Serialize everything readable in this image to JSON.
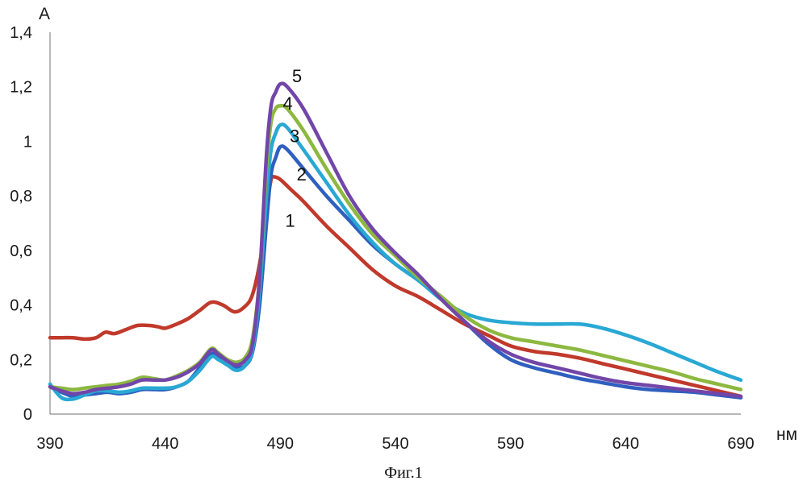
{
  "caption": "Фиг.1",
  "chart_data": {
    "type": "line",
    "title": "",
    "xlabel": "нм",
    "ylabel": "А",
    "xlim": [
      390,
      690
    ],
    "ylim": [
      0,
      1.4
    ],
    "x_ticks": [
      "390",
      "440",
      "490",
      "540",
      "590",
      "640",
      "690"
    ],
    "y_ticks": [
      "0",
      "0,2",
      "0,4",
      "0,6",
      "0,8",
      "1",
      "1,2",
      "1,4"
    ],
    "grid": false,
    "legend": "none",
    "series": [
      {
        "name": "1",
        "color": "#c0392b",
        "label_at": [
          490,
          0.71
        ],
        "points": [
          [
            390,
            0.28
          ],
          [
            395,
            0.28
          ],
          [
            400,
            0.28
          ],
          [
            405,
            0.275
          ],
          [
            410,
            0.28
          ],
          [
            414,
            0.3
          ],
          [
            418,
            0.295
          ],
          [
            423,
            0.31
          ],
          [
            428,
            0.325
          ],
          [
            433,
            0.325
          ],
          [
            437,
            0.32
          ],
          [
            440,
            0.315
          ],
          [
            445,
            0.33
          ],
          [
            450,
            0.35
          ],
          [
            455,
            0.38
          ],
          [
            460,
            0.41
          ],
          [
            465,
            0.4
          ],
          [
            470,
            0.375
          ],
          [
            474,
            0.39
          ],
          [
            478,
            0.44
          ],
          [
            482,
            0.6
          ],
          [
            484,
            0.75
          ],
          [
            486,
            0.86
          ],
          [
            487,
            0.87
          ],
          [
            490,
            0.86
          ],
          [
            495,
            0.82
          ],
          [
            500,
            0.78
          ],
          [
            510,
            0.69
          ],
          [
            520,
            0.61
          ],
          [
            530,
            0.53
          ],
          [
            540,
            0.47
          ],
          [
            550,
            0.43
          ],
          [
            560,
            0.38
          ],
          [
            570,
            0.33
          ],
          [
            580,
            0.29
          ],
          [
            590,
            0.25
          ],
          [
            600,
            0.23
          ],
          [
            610,
            0.22
          ],
          [
            620,
            0.205
          ],
          [
            630,
            0.185
          ],
          [
            640,
            0.165
          ],
          [
            650,
            0.145
          ],
          [
            660,
            0.125
          ],
          [
            670,
            0.105
          ],
          [
            680,
            0.085
          ],
          [
            690,
            0.065
          ]
        ]
      },
      {
        "name": "2",
        "color": "#2f5fbf",
        "label_at": [
          495,
          0.88
        ],
        "points": [
          [
            390,
            0.1
          ],
          [
            395,
            0.08
          ],
          [
            400,
            0.065
          ],
          [
            405,
            0.07
          ],
          [
            410,
            0.075
          ],
          [
            415,
            0.08
          ],
          [
            420,
            0.075
          ],
          [
            425,
            0.08
          ],
          [
            430,
            0.09
          ],
          [
            435,
            0.09
          ],
          [
            440,
            0.09
          ],
          [
            445,
            0.1
          ],
          [
            450,
            0.12
          ],
          [
            455,
            0.17
          ],
          [
            460,
            0.22
          ],
          [
            463,
            0.215
          ],
          [
            467,
            0.19
          ],
          [
            471,
            0.17
          ],
          [
            475,
            0.18
          ],
          [
            478,
            0.23
          ],
          [
            481,
            0.4
          ],
          [
            484,
            0.7
          ],
          [
            486,
            0.88
          ],
          [
            488,
            0.94
          ],
          [
            490,
            0.98
          ],
          [
            493,
            0.97
          ],
          [
            500,
            0.9
          ],
          [
            510,
            0.8
          ],
          [
            520,
            0.71
          ],
          [
            530,
            0.62
          ],
          [
            540,
            0.55
          ],
          [
            550,
            0.49
          ],
          [
            560,
            0.42
          ],
          [
            570,
            0.34
          ],
          [
            580,
            0.26
          ],
          [
            590,
            0.2
          ],
          [
            600,
            0.17
          ],
          [
            610,
            0.15
          ],
          [
            620,
            0.13
          ],
          [
            630,
            0.115
          ],
          [
            640,
            0.1
          ],
          [
            650,
            0.09
          ],
          [
            660,
            0.085
          ],
          [
            670,
            0.08
          ],
          [
            680,
            0.07
          ],
          [
            690,
            0.06
          ]
        ]
      },
      {
        "name": "3",
        "color": "#29a8d4",
        "label_at": [
          492,
          1.02
        ],
        "points": [
          [
            390,
            0.11
          ],
          [
            395,
            0.06
          ],
          [
            400,
            0.055
          ],
          [
            405,
            0.07
          ],
          [
            410,
            0.085
          ],
          [
            415,
            0.085
          ],
          [
            420,
            0.08
          ],
          [
            425,
            0.085
          ],
          [
            430,
            0.095
          ],
          [
            435,
            0.095
          ],
          [
            440,
            0.095
          ],
          [
            445,
            0.1
          ],
          [
            450,
            0.12
          ],
          [
            455,
            0.16
          ],
          [
            460,
            0.21
          ],
          [
            463,
            0.2
          ],
          [
            467,
            0.18
          ],
          [
            471,
            0.16
          ],
          [
            475,
            0.18
          ],
          [
            478,
            0.24
          ],
          [
            481,
            0.45
          ],
          [
            484,
            0.8
          ],
          [
            486,
            0.97
          ],
          [
            488,
            1.03
          ],
          [
            490,
            1.06
          ],
          [
            493,
            1.05
          ],
          [
            500,
            0.97
          ],
          [
            510,
            0.85
          ],
          [
            520,
            0.73
          ],
          [
            530,
            0.63
          ],
          [
            540,
            0.55
          ],
          [
            550,
            0.49
          ],
          [
            560,
            0.42
          ],
          [
            570,
            0.37
          ],
          [
            580,
            0.345
          ],
          [
            590,
            0.335
          ],
          [
            600,
            0.33
          ],
          [
            610,
            0.33
          ],
          [
            620,
            0.33
          ],
          [
            630,
            0.315
          ],
          [
            640,
            0.29
          ],
          [
            650,
            0.26
          ],
          [
            660,
            0.225
          ],
          [
            670,
            0.19
          ],
          [
            680,
            0.155
          ],
          [
            690,
            0.125
          ]
        ]
      },
      {
        "name": "4",
        "color": "#8db840",
        "label_at": [
          489,
          1.14
        ],
        "points": [
          [
            390,
            0.1
          ],
          [
            395,
            0.095
          ],
          [
            400,
            0.09
          ],
          [
            405,
            0.095
          ],
          [
            410,
            0.1
          ],
          [
            415,
            0.105
          ],
          [
            420,
            0.11
          ],
          [
            425,
            0.12
          ],
          [
            430,
            0.135
          ],
          [
            435,
            0.13
          ],
          [
            440,
            0.125
          ],
          [
            445,
            0.14
          ],
          [
            450,
            0.16
          ],
          [
            455,
            0.19
          ],
          [
            460,
            0.24
          ],
          [
            463,
            0.225
          ],
          [
            467,
            0.2
          ],
          [
            471,
            0.19
          ],
          [
            475,
            0.21
          ],
          [
            478,
            0.28
          ],
          [
            481,
            0.5
          ],
          [
            484,
            0.9
          ],
          [
            486,
            1.07
          ],
          [
            488,
            1.12
          ],
          [
            490,
            1.13
          ],
          [
            493,
            1.12
          ],
          [
            500,
            1.04
          ],
          [
            510,
            0.9
          ],
          [
            520,
            0.77
          ],
          [
            530,
            0.66
          ],
          [
            540,
            0.58
          ],
          [
            550,
            0.5
          ],
          [
            560,
            0.43
          ],
          [
            570,
            0.36
          ],
          [
            580,
            0.31
          ],
          [
            590,
            0.28
          ],
          [
            600,
            0.265
          ],
          [
            610,
            0.25
          ],
          [
            620,
            0.235
          ],
          [
            630,
            0.215
          ],
          [
            640,
            0.195
          ],
          [
            650,
            0.175
          ],
          [
            660,
            0.155
          ],
          [
            670,
            0.13
          ],
          [
            680,
            0.11
          ],
          [
            690,
            0.09
          ]
        ]
      },
      {
        "name": "5",
        "color": "#7246a8",
        "label_at": [
          493,
          1.24
        ],
        "points": [
          [
            390,
            0.1
          ],
          [
            395,
            0.085
          ],
          [
            400,
            0.075
          ],
          [
            405,
            0.08
          ],
          [
            410,
            0.09
          ],
          [
            415,
            0.095
          ],
          [
            420,
            0.1
          ],
          [
            425,
            0.11
          ],
          [
            430,
            0.125
          ],
          [
            435,
            0.125
          ],
          [
            440,
            0.125
          ],
          [
            445,
            0.135
          ],
          [
            450,
            0.155
          ],
          [
            455,
            0.185
          ],
          [
            460,
            0.235
          ],
          [
            463,
            0.22
          ],
          [
            467,
            0.195
          ],
          [
            471,
            0.18
          ],
          [
            475,
            0.2
          ],
          [
            478,
            0.26
          ],
          [
            481,
            0.5
          ],
          [
            484,
            0.95
          ],
          [
            486,
            1.13
          ],
          [
            488,
            1.18
          ],
          [
            490,
            1.21
          ],
          [
            493,
            1.2
          ],
          [
            500,
            1.12
          ],
          [
            510,
            0.96
          ],
          [
            520,
            0.8
          ],
          [
            530,
            0.68
          ],
          [
            540,
            0.59
          ],
          [
            550,
            0.51
          ],
          [
            560,
            0.42
          ],
          [
            570,
            0.34
          ],
          [
            580,
            0.27
          ],
          [
            590,
            0.22
          ],
          [
            600,
            0.19
          ],
          [
            610,
            0.17
          ],
          [
            620,
            0.15
          ],
          [
            630,
            0.13
          ],
          [
            640,
            0.115
          ],
          [
            650,
            0.105
          ],
          [
            660,
            0.095
          ],
          [
            670,
            0.085
          ],
          [
            680,
            0.075
          ],
          [
            690,
            0.065
          ]
        ]
      }
    ]
  }
}
